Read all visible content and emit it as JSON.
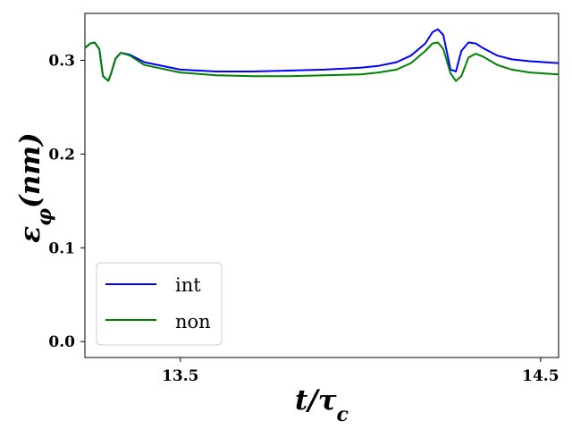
{
  "chart_data": {
    "type": "line",
    "xlabel": "t/τc",
    "ylabel": "εφ(nm)",
    "xlim": [
      13.235,
      14.55
    ],
    "ylim": [
      -0.017,
      0.35
    ],
    "xticks": [
      13.5,
      14.5
    ],
    "xtick_labels": [
      "13.5",
      "14.5"
    ],
    "yticks": [
      0.0,
      0.1,
      0.2,
      0.3
    ],
    "ytick_labels": [
      "0.0",
      "0.1",
      "0.2",
      "0.3"
    ],
    "grid": false,
    "legend": "lower-left",
    "series": [
      {
        "name": "int",
        "color": "#0000ff",
        "x": [
          13.235,
          13.25,
          13.262,
          13.275,
          13.285,
          13.3,
          13.307,
          13.32,
          13.335,
          13.36,
          13.4,
          13.5,
          13.6,
          13.7,
          13.8,
          13.9,
          14.0,
          14.05,
          14.1,
          14.14,
          14.18,
          14.2,
          14.215,
          14.23,
          14.25,
          14.265,
          14.28,
          14.3,
          14.32,
          14.34,
          14.38,
          14.42,
          14.47,
          14.55
        ],
        "y": [
          0.313,
          0.318,
          0.319,
          0.312,
          0.283,
          0.278,
          0.285,
          0.302,
          0.308,
          0.306,
          0.298,
          0.29,
          0.288,
          0.288,
          0.289,
          0.29,
          0.292,
          0.294,
          0.298,
          0.305,
          0.318,
          0.33,
          0.333,
          0.327,
          0.29,
          0.288,
          0.31,
          0.319,
          0.318,
          0.313,
          0.305,
          0.301,
          0.299,
          0.297
        ]
      },
      {
        "name": "non",
        "color": "#008000",
        "x": [
          13.235,
          13.25,
          13.262,
          13.275,
          13.285,
          13.3,
          13.307,
          13.32,
          13.335,
          13.36,
          13.4,
          13.5,
          13.6,
          13.7,
          13.8,
          13.9,
          14.0,
          14.05,
          14.1,
          14.14,
          14.18,
          14.2,
          14.215,
          14.23,
          14.25,
          14.265,
          14.28,
          14.3,
          14.32,
          14.34,
          14.38,
          14.42,
          14.47,
          14.55
        ],
        "y": [
          0.313,
          0.318,
          0.319,
          0.312,
          0.283,
          0.278,
          0.285,
          0.302,
          0.308,
          0.305,
          0.295,
          0.287,
          0.284,
          0.283,
          0.283,
          0.284,
          0.285,
          0.287,
          0.29,
          0.297,
          0.31,
          0.318,
          0.319,
          0.312,
          0.286,
          0.278,
          0.283,
          0.303,
          0.307,
          0.304,
          0.295,
          0.29,
          0.287,
          0.285
        ]
      }
    ]
  }
}
